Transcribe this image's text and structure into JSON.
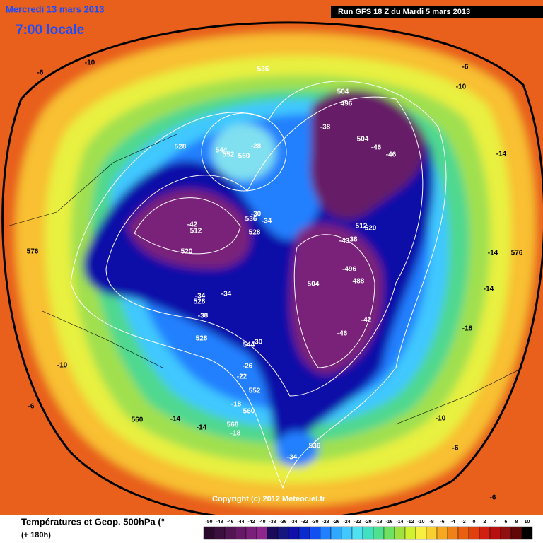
{
  "header": {
    "date": "Mercredi 13 mars 2013",
    "time": "7:00 locale",
    "run": "Run GFS 18 Z du Mardi 5 mars 2013"
  },
  "map": {
    "labels": [
      "-6",
      "-10",
      "-6",
      "-10",
      "536",
      "504",
      "496",
      "-38",
      "504",
      "-46",
      "-46",
      "-14",
      "528",
      "544",
      "552",
      "560",
      "-28",
      "576",
      "-30",
      "536",
      "-34",
      "528",
      "-42",
      "512",
      "512",
      "520",
      "-43",
      "38",
      "520",
      "-14",
      "576",
      "-496",
      "504",
      "488",
      "-14",
      "-34",
      "-34",
      "528",
      "-38",
      "-42",
      "-18",
      "-46",
      "528",
      "544",
      "-30",
      "-10",
      "-26",
      "-22",
      "552",
      "-6",
      "-18",
      "560",
      "560",
      "-14",
      "-14",
      "568",
      "-18",
      "-10",
      "536",
      "-6",
      "-34",
      "-6"
    ],
    "copyright": "Copyright (c) 2012 Meteociel.fr"
  },
  "legend": {
    "title": "Températures et Geop. 500hPa (°",
    "subtitle": "(+ 180h)",
    "ticks": [
      -50,
      -48,
      -46,
      -44,
      -42,
      -40,
      -38,
      -36,
      -34,
      -32,
      -30,
      -28,
      -26,
      -24,
      -22,
      -20,
      -18,
      -16,
      -14,
      -12,
      -10,
      -8,
      -6,
      -4,
      -2,
      0,
      2,
      4,
      6,
      8,
      10
    ],
    "colors": [
      "#2a0a2a",
      "#3d0f3f",
      "#521552",
      "#661a66",
      "#7a207a",
      "#8e268e",
      "#1a0a5a",
      "#161680",
      "#1010a8",
      "#0a2ad0",
      "#1050f0",
      "#2080ff",
      "#30a8ff",
      "#40c8ff",
      "#50e0f0",
      "#40e0c0",
      "#50e090",
      "#70e060",
      "#a0e040",
      "#d0f030",
      "#f8f040",
      "#f8d030",
      "#f8a820",
      "#f08018",
      "#e86010",
      "#e04010",
      "#d02010",
      "#b81010",
      "#901010",
      "#600808",
      "#000000"
    ]
  }
}
